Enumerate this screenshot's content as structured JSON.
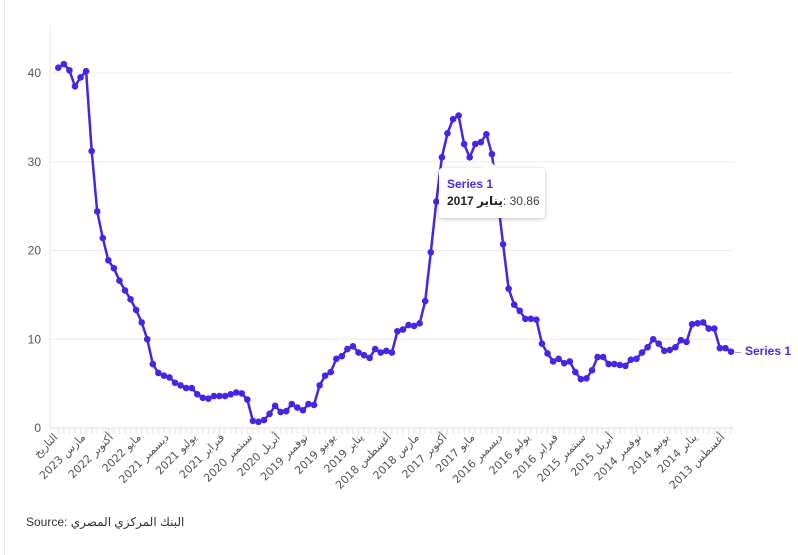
{
  "chart_data": {
    "type": "line",
    "title": "",
    "xlabel": "",
    "ylabel": "",
    "ylim": [
      0,
      45
    ],
    "y_ticks": [
      0,
      10,
      20,
      30,
      40
    ],
    "grid": true,
    "tick_interval": 5,
    "x_tick_labels": [
      "التاريخ",
      "مارس 2023",
      "أكتوبر 2022",
      "مايو 2022",
      "ديسمبر 2021",
      "يوليو 2021",
      "فبراير 2021",
      "سبتمبر 2020",
      "أبريل 2020",
      "نوفمبر 2019",
      "يونيو 2019",
      "يناير 2019",
      "أغسطس 2018",
      "مارس 2018",
      "أكتوبر 2017",
      "مايو 2017",
      "ديسمبر 2016",
      "يوليو 2016",
      "فبراير 2016",
      "سبتمبر 2015",
      "أبريل 2015",
      "نوفمبر 2014",
      "يونيو 2014",
      "يناير 2014",
      "أغسطس 2013"
    ],
    "series": [
      {
        "name": "Series 1",
        "color": "#4426e6",
        "values": [
          40.6,
          41.0,
          40.3,
          38.5,
          39.5,
          40.2,
          31.2,
          24.4,
          21.4,
          18.9,
          18.0,
          16.6,
          15.5,
          14.5,
          13.3,
          11.9,
          10.0,
          7.2,
          6.2,
          5.9,
          5.7,
          5.1,
          4.8,
          4.5,
          4.5,
          3.8,
          3.4,
          3.3,
          3.6,
          3.6,
          3.6,
          3.8,
          4.0,
          3.9,
          3.2,
          0.8,
          0.7,
          0.9,
          1.6,
          2.5,
          1.8,
          1.9,
          2.7,
          2.3,
          2.0,
          2.7,
          2.6,
          4.8,
          5.9,
          6.3,
          7.8,
          8.1,
          8.9,
          9.2,
          8.5,
          8.2,
          7.9,
          8.9,
          8.5,
          8.7,
          8.5,
          10.9,
          11.1,
          11.6,
          11.5,
          11.8,
          14.3,
          19.8,
          25.5,
          30.5,
          33.2,
          34.8,
          35.2,
          32.0,
          30.5,
          32.0,
          32.2,
          33.1,
          30.86,
          26.0,
          20.7,
          15.7,
          13.9,
          13.2,
          12.3,
          12.3,
          12.2,
          9.5,
          8.4,
          7.5,
          7.8,
          7.3,
          7.5,
          6.3,
          5.5,
          5.6,
          6.5,
          8.0,
          8.0,
          7.2,
          7.2,
          7.1,
          7.0,
          7.7,
          7.8,
          8.5,
          9.1,
          10.0,
          9.5,
          8.7,
          8.8,
          9.1,
          9.9,
          9.7,
          11.7,
          11.8,
          11.9,
          11.2,
          11.2,
          9.0,
          9.0,
          8.6
        ]
      }
    ],
    "tooltip": {
      "series": "Series 1",
      "date": "يناير 2017",
      "value": "30.86",
      "index": 78
    },
    "end_label": "Series 1"
  },
  "source": "Source: البنك المركزي المصري"
}
